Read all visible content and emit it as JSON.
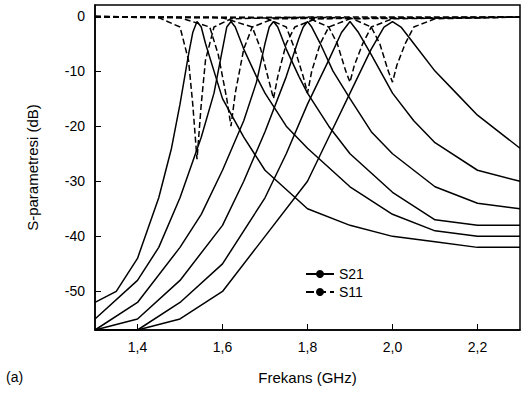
{
  "chart_data": {
    "type": "line",
    "xlabel": "Frekans (GHz)",
    "ylabel": "S-parametresi (dB)",
    "annotations": [
      "(a)"
    ],
    "xlim": [
      1.3,
      2.3
    ],
    "xticks": [
      {
        "value": 1.4,
        "label": "1,4"
      },
      {
        "value": 1.6,
        "label": "1,6"
      },
      {
        "value": 1.8,
        "label": "1,8"
      },
      {
        "value": 2.0,
        "label": "2,0"
      },
      {
        "value": 2.2,
        "label": "2,2"
      }
    ],
    "ylim": [
      -57,
      2
    ],
    "yticks": [
      -50,
      -40,
      -30,
      -20,
      -10,
      0
    ],
    "grid": false,
    "legend": "bottom",
    "series": [
      {
        "name": "S21",
        "color": "#000000",
        "line_style": "solid",
        "x": [
          1.3,
          1.35,
          1.4,
          1.45,
          1.48,
          1.5,
          1.52,
          1.53,
          1.54,
          1.55,
          1.56,
          1.58,
          1.6,
          1.65,
          1.7,
          1.8,
          1.9,
          2.0,
          2.1,
          2.2,
          2.3
        ],
        "values": [
          -52,
          -50,
          -44,
          -33,
          -24,
          -16,
          -7,
          -3,
          -1,
          -2,
          -5,
          -10,
          -15,
          -22,
          -28,
          -35,
          -38,
          -40,
          -41,
          -42,
          -42
        ]
      },
      {
        "name": "S21",
        "color": "#000000",
        "line_style": "solid",
        "x": [
          1.3,
          1.4,
          1.45,
          1.5,
          1.55,
          1.58,
          1.6,
          1.61,
          1.62,
          1.63,
          1.65,
          1.68,
          1.7,
          1.75,
          1.8,
          1.9,
          2.0,
          2.1,
          2.2,
          2.3
        ],
        "values": [
          -55,
          -48,
          -42,
          -33,
          -22,
          -14,
          -6,
          -2,
          -1,
          -2,
          -6,
          -11,
          -14,
          -20,
          -24,
          -31,
          -36,
          -39,
          -40,
          -40
        ]
      },
      {
        "name": "S21",
        "color": "#000000",
        "line_style": "solid",
        "x": [
          1.3,
          1.4,
          1.5,
          1.55,
          1.6,
          1.65,
          1.68,
          1.7,
          1.71,
          1.72,
          1.73,
          1.75,
          1.78,
          1.8,
          1.85,
          1.9,
          2.0,
          2.1,
          2.2,
          2.3
        ],
        "values": [
          -57,
          -52,
          -42,
          -36,
          -28,
          -19,
          -12,
          -5,
          -2,
          -1,
          -2,
          -6,
          -11,
          -14,
          -20,
          -25,
          -32,
          -37,
          -38,
          -38
        ]
      },
      {
        "name": "S21",
        "color": "#000000",
        "line_style": "solid",
        "x": [
          1.3,
          1.4,
          1.5,
          1.6,
          1.65,
          1.7,
          1.75,
          1.78,
          1.79,
          1.8,
          1.81,
          1.83,
          1.86,
          1.9,
          1.95,
          2.0,
          2.1,
          2.2,
          2.3
        ],
        "values": [
          -57,
          -55,
          -48,
          -38,
          -30,
          -21,
          -11,
          -4,
          -2,
          -1,
          -2,
          -5,
          -10,
          -15,
          -21,
          -25,
          -31,
          -34,
          -35
        ]
      },
      {
        "name": "S21",
        "color": "#000000",
        "line_style": "solid",
        "x": [
          1.3,
          1.4,
          1.5,
          1.6,
          1.7,
          1.75,
          1.8,
          1.85,
          1.88,
          1.9,
          1.92,
          1.95,
          2.0,
          2.05,
          2.1,
          2.2,
          2.3
        ],
        "values": [
          -57,
          -57,
          -52,
          -45,
          -33,
          -25,
          -16,
          -8,
          -3,
          -1,
          -3,
          -7,
          -14,
          -19,
          -23,
          -28,
          -30
        ]
      },
      {
        "name": "S21",
        "color": "#000000",
        "line_style": "solid",
        "x": [
          1.3,
          1.4,
          1.5,
          1.6,
          1.7,
          1.8,
          1.85,
          1.9,
          1.95,
          1.98,
          2.0,
          2.02,
          2.05,
          2.1,
          2.15,
          2.2,
          2.3
        ],
        "values": [
          -57,
          -57,
          -55,
          -50,
          -40,
          -30,
          -22,
          -14,
          -6,
          -2,
          -1,
          -2,
          -5,
          -10,
          -14,
          -18,
          -24
        ]
      },
      {
        "name": "S11",
        "color": "#000000",
        "line_style": "dashed",
        "x": [
          1.3,
          1.45,
          1.5,
          1.52,
          1.53,
          1.54,
          1.55,
          1.56,
          1.58,
          1.62,
          1.8,
          2.3
        ],
        "values": [
          0,
          -0.3,
          -2,
          -8,
          -16,
          -26,
          -16,
          -8,
          -2,
          -0.5,
          -0.2,
          -0.2
        ]
      },
      {
        "name": "S11",
        "color": "#000000",
        "line_style": "dashed",
        "x": [
          1.3,
          1.5,
          1.57,
          1.59,
          1.61,
          1.62,
          1.63,
          1.65,
          1.67,
          1.72,
          2.3
        ],
        "values": [
          -0.2,
          -0.3,
          -2,
          -7,
          -15,
          -20,
          -14,
          -6,
          -2,
          -0.5,
          -0.2
        ]
      },
      {
        "name": "S11",
        "color": "#000000",
        "line_style": "dashed",
        "x": [
          1.3,
          1.6,
          1.67,
          1.69,
          1.71,
          1.72,
          1.73,
          1.75,
          1.77,
          1.82,
          2.3
        ],
        "values": [
          -0.2,
          -0.3,
          -2,
          -6,
          -12,
          -15,
          -11,
          -5,
          -2,
          -0.5,
          -0.2
        ]
      },
      {
        "name": "S11",
        "color": "#000000",
        "line_style": "dashed",
        "x": [
          1.3,
          1.7,
          1.75,
          1.77,
          1.79,
          1.8,
          1.81,
          1.83,
          1.85,
          1.9,
          2.3
        ],
        "values": [
          -0.2,
          -0.3,
          -2,
          -6,
          -11,
          -14,
          -10,
          -5,
          -2,
          -0.5,
          -0.2
        ]
      },
      {
        "name": "S11",
        "color": "#000000",
        "line_style": "dashed",
        "x": [
          1.3,
          1.8,
          1.85,
          1.87,
          1.89,
          1.9,
          1.91,
          1.93,
          1.95,
          2.0,
          2.3
        ],
        "values": [
          -0.2,
          -0.3,
          -2,
          -5,
          -10,
          -12,
          -9,
          -5,
          -2,
          -0.5,
          -0.2
        ]
      },
      {
        "name": "S11",
        "color": "#000000",
        "line_style": "dashed",
        "x": [
          1.3,
          1.9,
          1.95,
          1.97,
          1.99,
          2.0,
          2.01,
          2.03,
          2.05,
          2.1,
          2.3
        ],
        "values": [
          -0.2,
          -0.3,
          -2,
          -5,
          -10,
          -12,
          -9,
          -5,
          -2,
          -0.5,
          -0.2
        ]
      }
    ]
  }
}
